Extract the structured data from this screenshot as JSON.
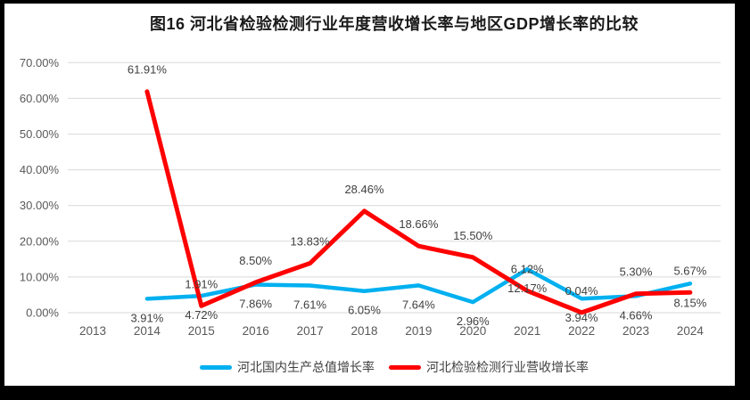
{
  "window": {
    "background_color": "#000000",
    "panel_color": "#ffffff"
  },
  "chart_data": {
    "type": "line",
    "title": "图16 河北省检验检测行业年度营收增长率与地区GDP增长率的比较",
    "categories": [
      "2013",
      "2014",
      "2015",
      "2016",
      "2017",
      "2018",
      "2019",
      "2020",
      "2021",
      "2022",
      "2023",
      "2024"
    ],
    "series": [
      {
        "name": "河北国内生产总值增长率",
        "color": "#00B0F0",
        "label_position": "below",
        "values": [
          null,
          3.91,
          4.72,
          7.86,
          7.61,
          6.05,
          7.64,
          2.96,
          12.17,
          3.94,
          4.66,
          8.15
        ],
        "labels": [
          null,
          "3.91%",
          "4.72%",
          "7.86%",
          "7.61%",
          "6.05%",
          "7.64%",
          "2.96%",
          "12.17%",
          "3.94%",
          "4.66%",
          "8.15%"
        ]
      },
      {
        "name": "河北检验检测行业营收增长率",
        "color": "#FF0000",
        "label_position": "above",
        "values": [
          null,
          61.91,
          1.91,
          8.5,
          13.83,
          28.46,
          18.66,
          15.5,
          6.12,
          0.04,
          5.3,
          5.67
        ],
        "labels": [
          null,
          "61.91%",
          "1.91%",
          "8.50%",
          "13.83%",
          "28.46%",
          "18.66%",
          "15.50%",
          "6.12%",
          "0.04%",
          "5.30%",
          "5.67%"
        ]
      }
    ],
    "y_ticks": [
      "0.00%",
      "10.00%",
      "20.00%",
      "30.00%",
      "40.00%",
      "50.00%",
      "60.00%",
      "70.00%"
    ],
    "ylim": [
      0,
      70
    ],
    "grid": true,
    "gridline_color": "#D9D9D9",
    "legend_position": "bottom"
  }
}
